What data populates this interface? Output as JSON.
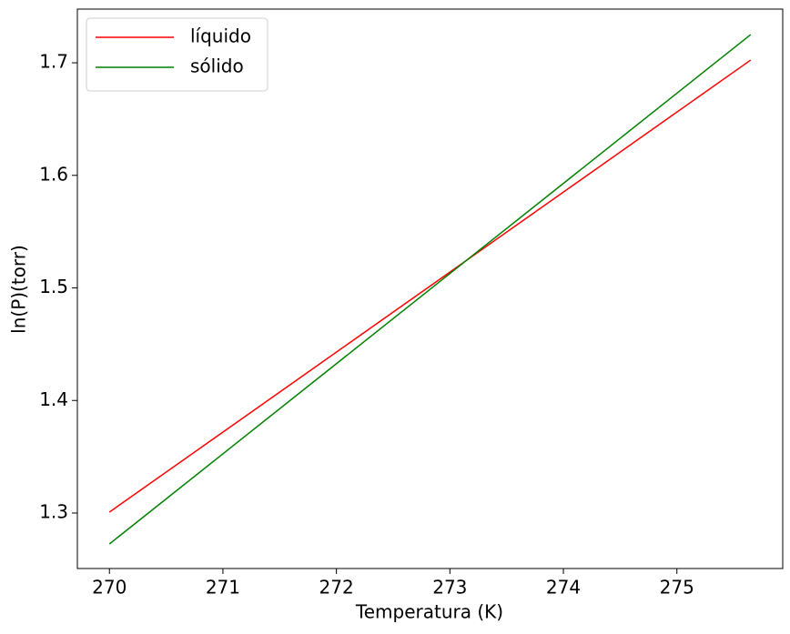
{
  "chart_data": {
    "type": "line",
    "x": [
      270,
      275.65
    ],
    "series": [
      {
        "name": "líquido",
        "color": "#ff0000",
        "values": [
          1.3008,
          1.7024
        ]
      },
      {
        "name": "sólido",
        "color": "#008000",
        "values": [
          1.2725,
          1.725
        ]
      }
    ],
    "xlabel": "Temperatura (K)",
    "ylabel": "ln(P)(torr)",
    "xlim": [
      269.7175,
      275.9325
    ],
    "ylim": [
      1.2507,
      1.7477
    ],
    "xticks": [
      270,
      271,
      272,
      273,
      274,
      275
    ],
    "yticks": [
      1.3,
      1.4,
      1.5,
      1.6,
      1.7
    ],
    "legend": "upper left",
    "grid": false
  }
}
